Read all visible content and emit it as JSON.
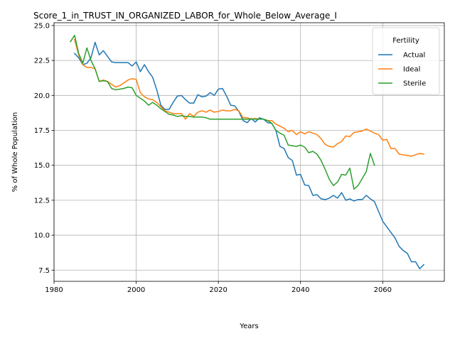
{
  "chart_data": {
    "type": "line",
    "title": "Score_1_in_TRUST_IN_ORGANIZED_LABOR_for_Whole_Below_Average_I",
    "xlabel": "Years",
    "ylabel": "% of Whole Population",
    "xlim": [
      1980,
      2075
    ],
    "ylim": [
      6.7,
      25.2
    ],
    "xticks": [
      1980,
      2000,
      2020,
      2040,
      2060
    ],
    "yticks": [
      7.5,
      10.0,
      12.5,
      15.0,
      17.5,
      20.0,
      22.5,
      25.0
    ],
    "xtick_labels": [
      "1980",
      "2000",
      "2020",
      "2040",
      "2060"
    ],
    "ytick_labels": [
      "7.5",
      "10.0",
      "12.5",
      "15.0",
      "17.5",
      "20.0",
      "22.5",
      "25.0"
    ],
    "grid": true,
    "legend": {
      "title": "Fertility",
      "position": "top-right"
    },
    "series": [
      {
        "name": "Actual",
        "color": "#1f77b4",
        "x": [
          1985,
          1986,
          1987,
          1988,
          1989,
          1990,
          1991,
          1992,
          1993,
          1994,
          1995,
          1996,
          1997,
          1998,
          1999,
          2000,
          2001,
          2002,
          2003,
          2004,
          2005,
          2006,
          2007,
          2008,
          2009,
          2010,
          2011,
          2012,
          2013,
          2014,
          2015,
          2016,
          2017,
          2018,
          2019,
          2020,
          2021,
          2022,
          2023,
          2024,
          2025,
          2026,
          2027,
          2028,
          2029,
          2030,
          2031,
          2032,
          2033,
          2034,
          2035,
          2036,
          2037,
          2038,
          2039,
          2040,
          2041,
          2042,
          2043,
          2044,
          2045,
          2046,
          2047,
          2048,
          2049,
          2050,
          2051,
          2052,
          2053,
          2054,
          2055,
          2056,
          2057,
          2058,
          2059,
          2060,
          2061,
          2062,
          2063,
          2064,
          2065,
          2066,
          2067,
          2068,
          2069,
          2070
        ],
        "values": [
          23.0,
          22.7,
          22.2,
          22.3,
          22.7,
          23.8,
          22.9,
          23.2,
          22.8,
          22.4,
          22.35,
          22.35,
          22.35,
          22.35,
          22.1,
          22.4,
          21.7,
          22.2,
          21.7,
          21.3,
          20.4,
          19.3,
          19.0,
          19.0,
          19.5,
          19.95,
          20.0,
          19.7,
          19.45,
          19.45,
          20.05,
          19.9,
          19.95,
          20.2,
          20.0,
          20.45,
          20.5,
          19.95,
          19.3,
          19.25,
          18.85,
          18.2,
          18.05,
          18.35,
          18.1,
          18.4,
          18.3,
          18.05,
          18.0,
          17.5,
          16.35,
          16.2,
          15.55,
          15.35,
          14.3,
          14.35,
          13.6,
          13.55,
          12.85,
          12.9,
          12.6,
          12.55,
          12.65,
          12.85,
          12.65,
          13.05,
          12.5,
          12.6,
          12.45,
          12.55,
          12.55,
          12.85,
          12.6,
          12.4,
          11.7,
          11.0,
          10.6,
          10.2,
          9.8,
          9.2,
          8.9,
          8.7,
          8.1,
          8.1,
          7.6,
          7.9
        ]
      },
      {
        "name": "Ideal",
        "color": "#ff7f0e",
        "x": [
          1985,
          1986,
          1987,
          1988,
          1989,
          1990,
          1991,
          1992,
          1993,
          1994,
          1995,
          1996,
          1997,
          1998,
          1999,
          2000,
          2001,
          2002,
          2003,
          2004,
          2005,
          2006,
          2007,
          2008,
          2009,
          2010,
          2011,
          2012,
          2013,
          2014,
          2015,
          2016,
          2017,
          2018,
          2019,
          2020,
          2021,
          2022,
          2023,
          2024,
          2025,
          2026,
          2027,
          2028,
          2029,
          2030,
          2031,
          2032,
          2033,
          2034,
          2035,
          2036,
          2037,
          2038,
          2039,
          2040,
          2041,
          2042,
          2043,
          2044,
          2045,
          2046,
          2047,
          2048,
          2049,
          2050,
          2051,
          2052,
          2053,
          2054,
          2055,
          2056,
          2057,
          2058,
          2059,
          2060,
          2061,
          2062,
          2063,
          2064,
          2065,
          2066,
          2067,
          2068,
          2069,
          2070
        ],
        "values": [
          24.0,
          22.9,
          22.2,
          22.0,
          22.0,
          21.9,
          21.0,
          21.1,
          21.0,
          20.8,
          20.6,
          20.7,
          20.9,
          21.1,
          21.2,
          21.15,
          20.2,
          19.9,
          19.75,
          19.7,
          19.5,
          19.2,
          18.9,
          18.8,
          18.7,
          18.7,
          18.7,
          18.3,
          18.7,
          18.5,
          18.8,
          18.9,
          18.8,
          18.95,
          18.8,
          18.85,
          18.95,
          18.9,
          18.9,
          19.0,
          18.9,
          18.4,
          18.4,
          18.3,
          18.35,
          18.3,
          18.3,
          18.2,
          18.2,
          17.95,
          17.8,
          17.65,
          17.4,
          17.5,
          17.2,
          17.4,
          17.25,
          17.4,
          17.3,
          17.2,
          16.9,
          16.5,
          16.35,
          16.3,
          16.55,
          16.7,
          17.1,
          17.05,
          17.35,
          17.4,
          17.45,
          17.6,
          17.45,
          17.3,
          17.2,
          16.8,
          16.85,
          16.2,
          16.2,
          15.8,
          15.75,
          15.7,
          15.65,
          15.75,
          15.85,
          15.8
        ]
      },
      {
        "name": "Sterile",
        "color": "#2ca02c",
        "x": [
          1984,
          1985,
          1986,
          1987,
          1988,
          1989,
          1990,
          1991,
          1992,
          1993,
          1994,
          1995,
          1996,
          1997,
          1998,
          1999,
          2000,
          2001,
          2002,
          2003,
          2004,
          2005,
          2006,
          2007,
          2008,
          2009,
          2010,
          2011,
          2012,
          2013,
          2014,
          2015,
          2016,
          2017,
          2018,
          2019,
          2020,
          2021,
          2022,
          2023,
          2024,
          2025,
          2026,
          2027,
          2028,
          2029,
          2030,
          2031,
          2032,
          2033,
          2034,
          2035,
          2036,
          2037,
          2038,
          2039,
          2040,
          2041,
          2042,
          2043,
          2044,
          2045,
          2046,
          2047,
          2048,
          2049,
          2050,
          2051,
          2052,
          2053,
          2054,
          2055,
          2056,
          2057,
          2058
        ],
        "values": [
          23.85,
          24.3,
          23.0,
          22.3,
          23.4,
          22.5,
          21.9,
          21.0,
          21.05,
          21.0,
          20.5,
          20.4,
          20.45,
          20.5,
          20.6,
          20.55,
          20.0,
          19.8,
          19.6,
          19.3,
          19.5,
          19.3,
          19.05,
          18.85,
          18.65,
          18.6,
          18.5,
          18.55,
          18.5,
          18.5,
          18.45,
          18.45,
          18.45,
          18.4,
          18.3,
          18.3,
          18.3,
          18.3,
          18.3,
          18.3,
          18.3,
          18.3,
          18.3,
          18.3,
          18.3,
          18.3,
          18.3,
          18.3,
          18.2,
          18.0,
          17.5,
          17.3,
          17.15,
          16.45,
          16.4,
          16.35,
          16.45,
          16.3,
          15.9,
          16.0,
          15.8,
          15.35,
          14.7,
          14.0,
          13.55,
          13.8,
          14.35,
          14.3,
          14.8,
          13.3,
          13.55,
          14.05,
          14.55,
          15.85,
          15.0
        ]
      }
    ]
  }
}
